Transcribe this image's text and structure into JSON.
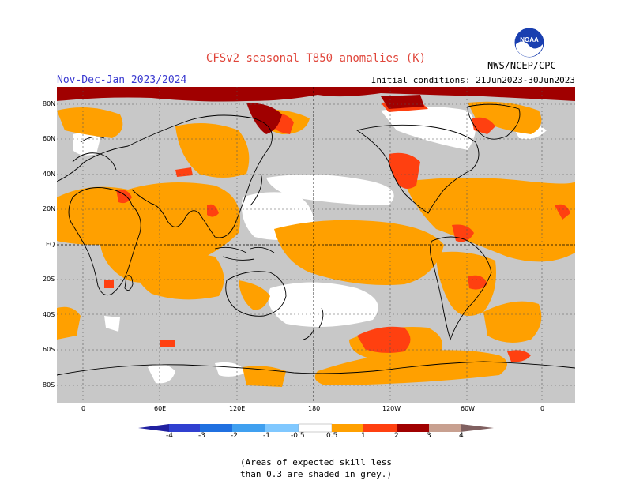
{
  "header": {
    "title": "CFSv2 seasonal T850 anomalies (K)",
    "season": "Nov-Dec-Jan 2023/2024",
    "initial_conditions": "Initial conditions: 21Jun2023-30Jun2023",
    "agency": "NWS/NCEP/CPC",
    "logo_text": "NOAA"
  },
  "map": {
    "lat_labels": [
      "80N",
      "60N",
      "40N",
      "20N",
      "EQ",
      "20S",
      "40S",
      "60S",
      "80S"
    ],
    "lon_labels": [
      "0",
      "60E",
      "120E",
      "180",
      "120W",
      "60W",
      "0"
    ],
    "colors": {
      "grey_low_skill": "#c8c8c8",
      "neutral": "#ffffff",
      "anom_0p5_1": "#ffa000",
      "anom_1_2": "#ff4010",
      "anom_2_3": "#a00000",
      "anom_3_4": "#c8a090"
    }
  },
  "colorbar": {
    "labels": [
      "-4",
      "-3",
      "-2",
      "-1",
      "-0.5",
      "0.5",
      "1",
      "2",
      "3",
      "4"
    ],
    "colors": [
      "#2020a0",
      "#3040d0",
      "#2070e0",
      "#40a0f0",
      "#80c8ff",
      "#ffffff",
      "#ffa000",
      "#ff4010",
      "#a00000",
      "#c8a090",
      "#806060"
    ]
  },
  "note": {
    "line1": "(Areas of expected skill less",
    "line2": "than 0.3 are shaded in grey.)"
  }
}
